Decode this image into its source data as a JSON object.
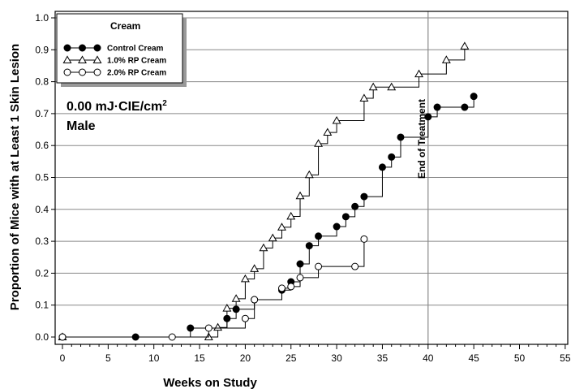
{
  "chart_data": {
    "type": "line",
    "step": true,
    "title": "",
    "xlabel": "Weeks on Study",
    "ylabel": "Proportion of Mice with at Least 1 Skin Lesion",
    "xlim": [
      0,
      55
    ],
    "ylim": [
      0,
      1.0
    ],
    "xticks": [
      0,
      5,
      10,
      15,
      20,
      25,
      30,
      35,
      40,
      45,
      50,
      55
    ],
    "yticks": [
      0.0,
      0.1,
      0.2,
      0.3,
      0.4,
      0.5,
      0.6,
      0.7,
      0.8,
      0.9,
      1.0
    ],
    "grid": {
      "horizontal": true,
      "vertical": false
    },
    "legend": {
      "title": "Cream",
      "position": "top-left",
      "entries": [
        "Control Cream",
        "1.0% RP Cream",
        "2.0% RP Cream"
      ]
    },
    "annotations": {
      "dose_text": "0.00 mJ·CIE/cm",
      "dose_sup": "2",
      "sex": "Male"
    },
    "reference_line": {
      "x": 40,
      "label": "End of Treatment"
    },
    "series": [
      {
        "name": "Control Cream",
        "marker": "filled-circle",
        "color": "#000000",
        "x": [
          0,
          8,
          14,
          18,
          19,
          21,
          24,
          25,
          26,
          27,
          28,
          30,
          31,
          32,
          33,
          35,
          36,
          37,
          40,
          41,
          44,
          45
        ],
        "y": [
          0.0,
          0.0,
          0.028,
          0.058,
          0.087,
          0.117,
          0.147,
          0.173,
          0.229,
          0.286,
          0.316,
          0.346,
          0.377,
          0.409,
          0.44,
          0.532,
          0.564,
          0.626,
          0.69,
          0.72,
          0.72,
          0.754
        ]
      },
      {
        "name": "1.0% RP Cream",
        "marker": "open-triangle",
        "color": "#000000",
        "x": [
          0,
          16,
          17,
          18,
          19,
          20,
          21,
          22,
          23,
          24,
          25,
          26,
          27,
          28,
          29,
          30,
          33,
          34,
          36,
          39,
          42,
          44
        ],
        "y": [
          0.0,
          0.0,
          0.03,
          0.09,
          0.12,
          0.182,
          0.214,
          0.279,
          0.31,
          0.344,
          0.378,
          0.442,
          0.508,
          0.606,
          0.641,
          0.678,
          0.748,
          0.783,
          0.783,
          0.824,
          0.868,
          0.911
        ]
      },
      {
        "name": "2.0% RP Cream",
        "marker": "open-circle",
        "color": "#000000",
        "x": [
          0,
          12,
          16,
          20,
          21,
          24,
          25,
          26,
          28,
          32,
          33
        ],
        "y": [
          0.0,
          0.0,
          0.028,
          0.058,
          0.117,
          0.153,
          0.158,
          0.186,
          0.221,
          0.221,
          0.307
        ]
      }
    ]
  }
}
